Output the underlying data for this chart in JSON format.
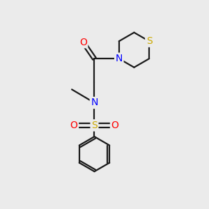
{
  "bg_color": "#ebebeb",
  "bond_color": "#1a1a1a",
  "atom_colors": {
    "N": "#0000ff",
    "O": "#ff0000",
    "S_sulfonyl": "#ccaa00",
    "S_thio": "#ccaa00"
  },
  "lw": 1.6
}
